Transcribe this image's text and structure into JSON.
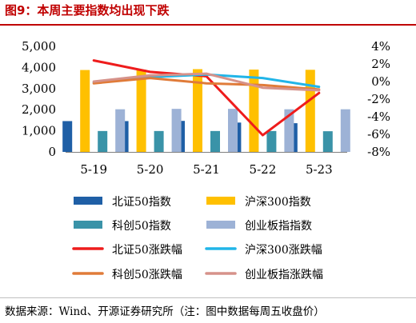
{
  "figure": {
    "title": "图9：本周主要指数均出现下跌",
    "source": "数据来源：Wind、开源证券研究所（注：图中数据每周五收盘价）"
  },
  "chart_data": {
    "type": "bar",
    "categories": [
      "5-19",
      "5-20",
      "5-21",
      "5-22",
      "5-23"
    ],
    "left_axis": {
      "ylim": [
        0,
        5000
      ],
      "ticks": [
        "0",
        "1,000",
        "2,000",
        "3,000",
        "4,000",
        "5,000"
      ]
    },
    "right_axis": {
      "ylim": [
        -8,
        4
      ],
      "ticks": [
        "-8%",
        "-6%",
        "-4%",
        "-2%",
        "0%",
        "2%",
        "4%"
      ]
    },
    "grid": false,
    "legend_position": "bottom",
    "bar_series": [
      {
        "name": "北证50指数",
        "color": "#1f5fa6",
        "values": [
          1460,
          1460,
          1470,
          1390,
          1360
        ]
      },
      {
        "name": "沪深300指数",
        "color": "#ffc000",
        "values": [
          3880,
          3900,
          3920,
          3900,
          3890
        ]
      },
      {
        "name": "科创50指数",
        "color": "#3a93a8",
        "values": [
          990,
          990,
          990,
          990,
          980
        ]
      },
      {
        "name": "创业板指指数",
        "color": "#9db2d6",
        "values": [
          2020,
          2040,
          2040,
          2020,
          2020
        ]
      }
    ],
    "line_series": [
      {
        "name": "北证50涨跌幅",
        "color": "#ee1c1c",
        "values": [
          2.4,
          1.1,
          0.6,
          -6.1,
          -1.3
        ]
      },
      {
        "name": "沪深300涨跌幅",
        "color": "#21b5e8",
        "values": [
          -0.1,
          0.5,
          0.8,
          0.4,
          -0.6
        ]
      },
      {
        "name": "科创50涨跌幅",
        "color": "#e07b39",
        "values": [
          -0.2,
          0.4,
          -0.2,
          -0.4,
          -0.9
        ]
      },
      {
        "name": "创业板指涨跌幅",
        "color": "#d6928a",
        "values": [
          0.0,
          0.7,
          0.9,
          -0.7,
          -1.0
        ]
      }
    ],
    "legend": [
      {
        "label": "北证50指数",
        "kind": "bar",
        "color": "#1f5fa6"
      },
      {
        "label": "沪深300指数",
        "kind": "bar",
        "color": "#ffc000"
      },
      {
        "label": "科创50指数",
        "kind": "bar",
        "color": "#3a93a8"
      },
      {
        "label": "创业板指指数",
        "kind": "bar",
        "color": "#9db2d6"
      },
      {
        "label": "北证50涨跌幅",
        "kind": "line",
        "color": "#ee1c1c"
      },
      {
        "label": "沪深300涨跌幅",
        "kind": "line",
        "color": "#21b5e8"
      },
      {
        "label": "科创50涨跌幅",
        "kind": "line",
        "color": "#e07b39"
      },
      {
        "label": "创业板指涨跌幅",
        "kind": "line",
        "color": "#d6928a"
      }
    ]
  }
}
